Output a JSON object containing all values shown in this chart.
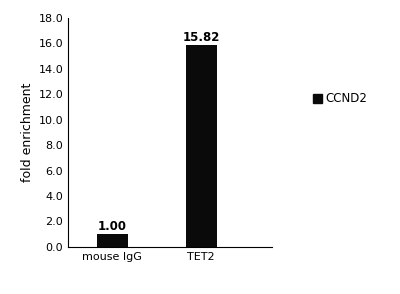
{
  "categories": [
    "mouse IgG",
    "TET2"
  ],
  "values": [
    1.0,
    15.82
  ],
  "bar_color": "#0a0a0a",
  "bar_width": 0.35,
  "ylim": [
    0,
    18.0
  ],
  "yticks": [
    0.0,
    2.0,
    4.0,
    6.0,
    8.0,
    10.0,
    12.0,
    14.0,
    16.0,
    18.0
  ],
  "ylabel": "fold enrichment",
  "ylabel_fontsize": 9,
  "tick_label_fontsize": 8,
  "bar_label_fontsize": 8.5,
  "bar_labels": [
    "1.00",
    "15.82"
  ],
  "legend_label": "CCND2",
  "legend_fontsize": 8.5,
  "background_color": "#ffffff",
  "figure_width": 4.0,
  "figure_height": 2.94,
  "dpi": 100
}
